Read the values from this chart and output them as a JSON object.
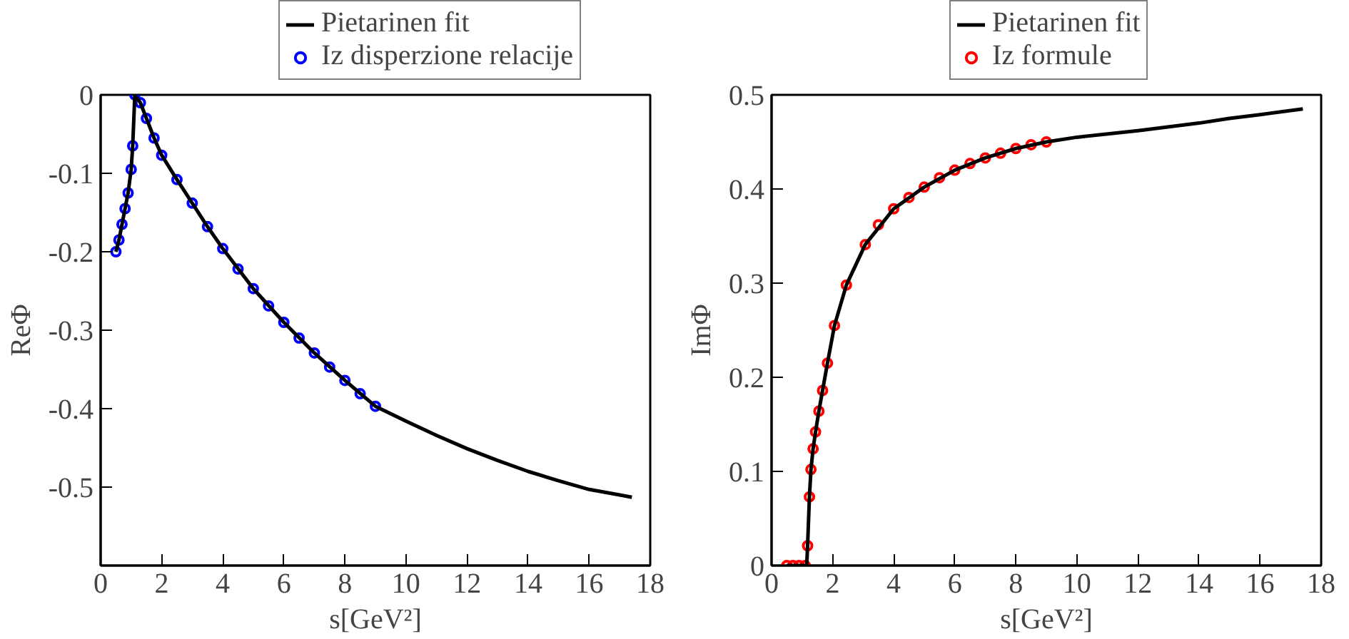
{
  "chart_data": [
    {
      "type": "line",
      "xlabel": "s[GeV²]",
      "ylabel": "ReΦ",
      "xlim": [
        0,
        18
      ],
      "ylim": [
        -0.6,
        0
      ],
      "xticks": [
        0,
        2,
        4,
        6,
        8,
        10,
        12,
        14,
        16,
        18
      ],
      "yticks": [
        0,
        -0.1,
        -0.2,
        -0.3,
        -0.4,
        -0.5
      ],
      "grid": false,
      "legend": "top",
      "series": [
        {
          "name": "Pietarinen fit",
          "color": "#000000",
          "line_style": "solid",
          "x": [
            0.5,
            0.6,
            0.7,
            0.8,
            0.9,
            1.0,
            1.05,
            1.12,
            1.3,
            1.5,
            1.75,
            2,
            2.5,
            3,
            3.5,
            4,
            5,
            6,
            7,
            8,
            9,
            10,
            11,
            12,
            13,
            14,
            15,
            16,
            17,
            17.4
          ],
          "values": [
            -0.2,
            -0.185,
            -0.165,
            -0.145,
            -0.125,
            -0.095,
            -0.065,
            0,
            -0.01,
            -0.03,
            -0.055,
            -0.077,
            -0.108,
            -0.138,
            -0.168,
            -0.196,
            -0.247,
            -0.29,
            -0.329,
            -0.364,
            -0.397,
            -0.416,
            -0.434,
            -0.451,
            -0.466,
            -0.48,
            -0.492,
            -0.503,
            -0.51,
            -0.513
          ]
        },
        {
          "name": "Iz disperzione relacije",
          "type": "scatter",
          "marker": "circle",
          "color": "#0000ff",
          "x": [
            0.5,
            0.6,
            0.7,
            0.8,
            0.9,
            1.0,
            1.05,
            1.12,
            1.3,
            1.5,
            1.75,
            2,
            2.5,
            3,
            3.5,
            4,
            4.5,
            5,
            5.5,
            6,
            6.5,
            7,
            7.5,
            8,
            8.5,
            9
          ],
          "values": [
            -0.2,
            -0.185,
            -0.165,
            -0.145,
            -0.125,
            -0.095,
            -0.065,
            0,
            -0.01,
            -0.03,
            -0.055,
            -0.077,
            -0.108,
            -0.138,
            -0.168,
            -0.196,
            -0.222,
            -0.247,
            -0.269,
            -0.29,
            -0.31,
            -0.329,
            -0.347,
            -0.364,
            -0.381,
            -0.397
          ]
        }
      ]
    },
    {
      "type": "line",
      "xlabel": "s[GeV²]",
      "ylabel": "ImΦ",
      "xlim": [
        0,
        18
      ],
      "ylim": [
        0,
        0.5
      ],
      "xticks": [
        0,
        2,
        4,
        6,
        8,
        10,
        12,
        14,
        16,
        18
      ],
      "yticks": [
        0,
        0.1,
        0.2,
        0.3,
        0.4,
        0.5
      ],
      "grid": false,
      "legend": "top",
      "series": [
        {
          "name": "Pietarinen fit",
          "color": "#000000",
          "line_style": "solid",
          "x": [
            0.5,
            0.8,
            1.1,
            1.15,
            1.18,
            1.24,
            1.29,
            1.36,
            1.44,
            1.55,
            1.67,
            1.83,
            2.06,
            2.45,
            3.07,
            4,
            5,
            6,
            7,
            8,
            9,
            10,
            12,
            14,
            15,
            16,
            17.4
          ],
          "values": [
            0,
            0,
            0,
            0,
            0.021,
            0.073,
            0.102,
            0.124,
            0.142,
            0.164,
            0.186,
            0.215,
            0.255,
            0.298,
            0.341,
            0.379,
            0.402,
            0.42,
            0.433,
            0.443,
            0.45,
            0.455,
            0.462,
            0.47,
            0.475,
            0.479,
            0.485
          ]
        },
        {
          "name": "Iz formule",
          "type": "scatter",
          "marker": "circle",
          "color": "#ff0000",
          "x": [
            0.5,
            0.7,
            0.9,
            1.1,
            1.18,
            1.24,
            1.29,
            1.36,
            1.44,
            1.55,
            1.67,
            1.83,
            2.06,
            2.45,
            3.07,
            3.5,
            4,
            4.5,
            5,
            5.5,
            6,
            6.5,
            7,
            7.5,
            8,
            8.5,
            9
          ],
          "values": [
            0,
            0,
            0,
            0,
            0.021,
            0.073,
            0.102,
            0.124,
            0.142,
            0.164,
            0.186,
            0.215,
            0.255,
            0.298,
            0.341,
            0.362,
            0.379,
            0.391,
            0.402,
            0.412,
            0.42,
            0.427,
            0.433,
            0.438,
            0.443,
            0.447,
            0.45
          ]
        }
      ]
    }
  ]
}
